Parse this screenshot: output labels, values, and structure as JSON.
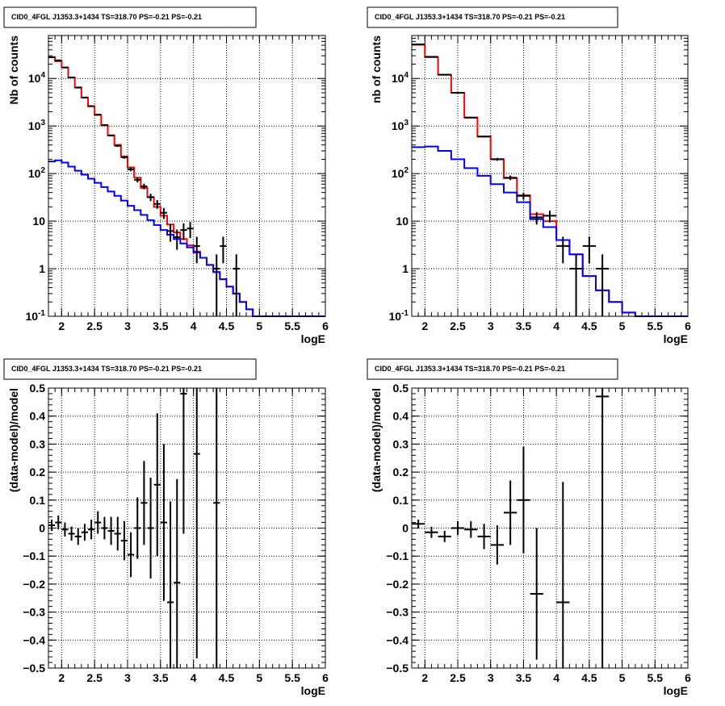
{
  "chart_data": [
    {
      "type": "line",
      "title": "CID0_4FGL J1353.3+1434 TS=318.70 PS=-0.21 PS=-0.21",
      "xlabel": "logE",
      "ylabel": "Nb of counts",
      "xlim": [
        1.8,
        6.0
      ],
      "ylim": [
        0.1,
        80000
      ],
      "yscale": "log",
      "grid": true,
      "x_ticks": [
        2,
        2.5,
        3,
        3.5,
        4,
        4.5,
        5,
        5.5,
        6
      ],
      "x_tick_labels": [
        "2",
        "2.5",
        "3",
        "3.5",
        "4",
        "4.5",
        "5",
        "5.5",
        "6"
      ],
      "y_ticks": [
        0.1,
        1,
        10,
        100,
        1000,
        10000
      ],
      "y_tick_labels": [
        "10^-1",
        "1",
        "10",
        "10^2",
        "10^3",
        "10^4"
      ],
      "bin_edges": [
        1.8,
        1.9,
        2.0,
        2.1,
        2.2,
        2.3,
        2.4,
        2.5,
        2.6,
        2.7,
        2.8,
        2.9,
        3.0,
        3.1,
        3.2,
        3.3,
        3.4,
        3.5,
        3.6,
        3.7,
        3.8,
        3.9,
        4.0,
        4.1,
        4.2,
        4.3,
        4.4,
        4.5,
        4.6,
        4.7,
        4.8,
        4.9,
        5.0,
        5.1,
        5.2,
        5.3,
        5.4,
        5.5,
        5.6,
        5.7,
        5.8,
        5.9,
        6.0
      ],
      "series": [
        {
          "color": "#ff0000",
          "kind": "step",
          "values": [
            28000,
            23000,
            17000,
            10500,
            6500,
            4000,
            2600,
            1700,
            1050,
            640,
            400,
            230,
            135,
            82,
            50,
            32,
            20,
            13,
            8.5,
            5.8,
            4.2,
            3.1,
            2.3,
            1.7,
            1.2,
            0.85,
            0.6,
            0.42,
            0.3,
            0.2,
            0.14,
            0.1,
            0.1,
            0.1,
            0.1,
            0.1,
            0.1,
            0.1,
            0.1,
            0.1,
            0.1,
            0.1
          ]
        },
        {
          "color": "#0000ff",
          "kind": "step",
          "values": [
            180,
            190,
            170,
            140,
            115,
            95,
            78,
            64,
            52,
            42,
            34,
            27,
            21,
            17,
            13.5,
            10.5,
            8.3,
            6.5,
            5.2,
            4.2,
            3.4,
            2.8,
            2.2,
            1.7,
            1.2,
            0.85,
            0.6,
            0.42,
            0.3,
            0.2,
            0.14,
            0.1,
            0.1,
            0.1,
            0.1,
            0.1,
            0.1,
            0.1,
            0.1,
            0.1,
            0.1,
            0.1
          ]
        },
        {
          "color": "#000000",
          "kind": "errorbar",
          "points": [
            {
              "x": 1.85,
              "y": 28000,
              "yerr": 170
            },
            {
              "x": 1.95,
              "y": 24000,
              "yerr": 155
            },
            {
              "x": 2.05,
              "y": 17000,
              "yerr": 130
            },
            {
              "x": 2.15,
              "y": 10500,
              "yerr": 102
            },
            {
              "x": 2.25,
              "y": 6400,
              "yerr": 80
            },
            {
              "x": 2.35,
              "y": 3950,
              "yerr": 63
            },
            {
              "x": 2.45,
              "y": 2620,
              "yerr": 51
            },
            {
              "x": 2.55,
              "y": 1740,
              "yerr": 42
            },
            {
              "x": 2.65,
              "y": 1040,
              "yerr": 32
            },
            {
              "x": 2.75,
              "y": 630,
              "yerr": 25
            },
            {
              "x": 2.85,
              "y": 385,
              "yerr": 20
            },
            {
              "x": 2.95,
              "y": 220,
              "yerr": 15
            },
            {
              "x": 3.05,
              "y": 123,
              "yerr": 11
            },
            {
              "x": 3.15,
              "y": 74,
              "yerr": 8.6
            },
            {
              "x": 3.25,
              "y": 54,
              "yerr": 7.3
            },
            {
              "x": 3.35,
              "y": 32,
              "yerr": 5.7
            },
            {
              "x": 3.45,
              "y": 23,
              "yerr": 4.8
            },
            {
              "x": 3.55,
              "y": 15,
              "yerr": 3.9
            },
            {
              "x": 3.65,
              "y": 6.2,
              "yerr": 2.5
            },
            {
              "x": 3.75,
              "y": 4.6,
              "yerr": 2.1
            },
            {
              "x": 3.85,
              "y": 6.5,
              "yerr": 2.5
            },
            {
              "x": 3.95,
              "y": 7,
              "yerr": 2.6
            },
            {
              "x": 4.05,
              "y": 3,
              "yerr": 1.7
            },
            {
              "x": 4.35,
              "y": 1,
              "yerr": 1
            },
            {
              "x": 4.45,
              "y": 3,
              "yerr": 1.7
            },
            {
              "x": 4.65,
              "y": 1,
              "yerr": 1
            }
          ]
        }
      ]
    },
    {
      "type": "line",
      "title": "CID0_4FGL J1353.3+1434 TS=318.70 PS=-0.21 PS=-0.21",
      "xlabel": "logE",
      "ylabel": "nb of counts",
      "xlim": [
        1.8,
        6.0
      ],
      "ylim": [
        0.1,
        80000
      ],
      "yscale": "log",
      "grid": true,
      "x_ticks": [
        2,
        2.5,
        3,
        3.5,
        4,
        4.5,
        5,
        5.5,
        6
      ],
      "x_tick_labels": [
        "2",
        "2.5",
        "3",
        "3.5",
        "4",
        "4.5",
        "5",
        "5.5",
        "6"
      ],
      "y_ticks": [
        0.1,
        1,
        10,
        100,
        1000,
        10000
      ],
      "y_tick_labels": [
        "10^-1",
        "1",
        "10",
        "10^2",
        "10^3",
        "10^4"
      ],
      "bin_edges": [
        1.8,
        2.0,
        2.2,
        2.4,
        2.6,
        2.8,
        3.0,
        3.2,
        3.4,
        3.6,
        3.8,
        4.0,
        4.2,
        4.4,
        4.6,
        4.8,
        5.0,
        5.2,
        5.4,
        5.6,
        5.8,
        6.0
      ],
      "series": [
        {
          "color": "#ff0000",
          "kind": "step",
          "values": [
            51000,
            28000,
            12000,
            5000,
            1500,
            600,
            200,
            80,
            35,
            14,
            10,
            4,
            2,
            0.7,
            0.35,
            0.2,
            0.12,
            0.1,
            0.1,
            0.1,
            0.1
          ]
        },
        {
          "color": "#0000ff",
          "kind": "step",
          "values": [
            360,
            370,
            300,
            200,
            130,
            90,
            60,
            40,
            25,
            11,
            7.5,
            4,
            2,
            0.7,
            0.35,
            0.2,
            0.12,
            0.1,
            0.1,
            0.1,
            0.1
          ]
        },
        {
          "color": "#000000",
          "kind": "errorbar",
          "points": [
            {
              "x": 1.9,
              "y": 52000,
              "yerr": 228
            },
            {
              "x": 2.1,
              "y": 28500,
              "yerr": 169
            },
            {
              "x": 2.3,
              "y": 12000,
              "yerr": 110
            },
            {
              "x": 2.5,
              "y": 5000,
              "yerr": 71
            },
            {
              "x": 2.7,
              "y": 1500,
              "yerr": 39
            },
            {
              "x": 2.9,
              "y": 600,
              "yerr": 24
            },
            {
              "x": 3.1,
              "y": 200,
              "yerr": 14
            },
            {
              "x": 3.3,
              "y": 82,
              "yerr": 9
            },
            {
              "x": 3.5,
              "y": 34,
              "yerr": 5.8
            },
            {
              "x": 3.7,
              "y": 12,
              "yerr": 3.5
            },
            {
              "x": 3.9,
              "y": 13,
              "yerr": 3.6
            },
            {
              "x": 4.1,
              "y": 3,
              "yerr": 1.7
            },
            {
              "x": 4.3,
              "y": 1,
              "yerr": 1
            },
            {
              "x": 4.5,
              "y": 3,
              "yerr": 1.7
            },
            {
              "x": 4.7,
              "y": 1,
              "yerr": 1
            }
          ]
        }
      ]
    },
    {
      "type": "scatter",
      "title": "CID0_4FGL J1353.3+1434 TS=318.70 PS=-0.21 PS=-0.21",
      "xlabel": "logE",
      "ylabel": "(data-model)/model",
      "xlim": [
        1.8,
        6.0
      ],
      "ylim": [
        -0.5,
        0.5
      ],
      "yscale": "linear",
      "grid": true,
      "x_ticks": [
        2,
        2.5,
        3,
        3.5,
        4,
        4.5,
        5,
        5.5,
        6
      ],
      "x_tick_labels": [
        "2",
        "2.5",
        "3",
        "3.5",
        "4",
        "4.5",
        "5",
        "5.5",
        "6"
      ],
      "y_ticks": [
        -0.5,
        -0.4,
        -0.3,
        -0.2,
        -0.1,
        0,
        0.1,
        0.2,
        0.3,
        0.4,
        0.5
      ],
      "y_tick_labels": [
        "−0.5",
        "−0.4",
        "−0.3",
        "−0.2",
        "−0.1",
        "0",
        "0.1",
        "0.2",
        "0.3",
        "0.4",
        "0.5"
      ],
      "xerr": 0.05,
      "series": [
        {
          "color": "#000000",
          "kind": "errorbar",
          "points": [
            {
              "x": 1.85,
              "y": 0.01,
              "yerr": 0.02
            },
            {
              "x": 1.95,
              "y": 0.02,
              "yerr": 0.025
            },
            {
              "x": 2.05,
              "y": -0.005,
              "yerr": 0.025
            },
            {
              "x": 2.15,
              "y": -0.02,
              "yerr": 0.025
            },
            {
              "x": 2.25,
              "y": -0.03,
              "yerr": 0.03
            },
            {
              "x": 2.35,
              "y": -0.015,
              "yerr": 0.03
            },
            {
              "x": 2.45,
              "y": -0.005,
              "yerr": 0.035
            },
            {
              "x": 2.55,
              "y": 0.02,
              "yerr": 0.04
            },
            {
              "x": 2.65,
              "y": 0.0,
              "yerr": 0.04
            },
            {
              "x": 2.75,
              "y": -0.01,
              "yerr": 0.05
            },
            {
              "x": 2.85,
              "y": -0.02,
              "yerr": 0.06
            },
            {
              "x": 2.95,
              "y": -0.045,
              "yerr": 0.07
            },
            {
              "x": 3.05,
              "y": -0.095,
              "yerr": 0.08
            },
            {
              "x": 3.15,
              "y": 0.0,
              "yerr": 0.11
            },
            {
              "x": 3.25,
              "y": 0.09,
              "yerr": 0.15
            },
            {
              "x": 3.35,
              "y": 0.0,
              "yerr": 0.18
            },
            {
              "x": 3.45,
              "y": 0.155,
              "yerr": 0.255
            },
            {
              "x": 3.55,
              "y": 0.02,
              "yerr": 0.28
            },
            {
              "x": 3.65,
              "y": -0.265,
              "yerr": 0.36
            },
            {
              "x": 3.75,
              "y": -0.195,
              "yerr": 0.37
            },
            {
              "x": 3.85,
              "y": 0.48,
              "yerr": 0.5
            },
            {
              "x": 4.05,
              "y": 0.265,
              "yerr": 0.73
            },
            {
              "x": 4.35,
              "y": 0.09,
              "yerr": 1.0
            }
          ]
        }
      ]
    },
    {
      "type": "scatter",
      "title": "CID0_4FGL J1353.3+1434 TS=318.70 PS=-0.21 PS=-0.21",
      "xlabel": "logE",
      "ylabel": "(data-model)/model",
      "xlim": [
        1.8,
        6.0
      ],
      "ylim": [
        -0.5,
        0.5
      ],
      "yscale": "linear",
      "grid": true,
      "x_ticks": [
        2,
        2.5,
        3,
        3.5,
        4,
        4.5,
        5,
        5.5,
        6
      ],
      "x_tick_labels": [
        "2",
        "2.5",
        "3",
        "3.5",
        "4",
        "4.5",
        "5",
        "5.5",
        "6"
      ],
      "y_ticks": [
        -0.5,
        -0.4,
        -0.3,
        -0.2,
        -0.1,
        0,
        0.1,
        0.2,
        0.3,
        0.4,
        0.5
      ],
      "y_tick_labels": [
        "−0.5",
        "−0.4",
        "−0.3",
        "−0.2",
        "−0.1",
        "0",
        "0.1",
        "0.2",
        "0.3",
        "0.4",
        "0.5"
      ],
      "xerr": 0.1,
      "series": [
        {
          "color": "#000000",
          "kind": "errorbar",
          "points": [
            {
              "x": 1.9,
              "y": 0.015,
              "yerr": 0.015
            },
            {
              "x": 2.1,
              "y": -0.015,
              "yerr": 0.02
            },
            {
              "x": 2.3,
              "y": -0.03,
              "yerr": 0.02
            },
            {
              "x": 2.5,
              "y": 0.0,
              "yerr": 0.025
            },
            {
              "x": 2.7,
              "y": -0.005,
              "yerr": 0.03
            },
            {
              "x": 2.9,
              "y": -0.03,
              "yerr": 0.045
            },
            {
              "x": 3.1,
              "y": -0.06,
              "yerr": 0.07
            },
            {
              "x": 3.3,
              "y": 0.055,
              "yerr": 0.115
            },
            {
              "x": 3.5,
              "y": 0.1,
              "yerr": 0.19
            },
            {
              "x": 3.7,
              "y": -0.235,
              "yerr": 0.235
            },
            {
              "x": 4.1,
              "y": -0.265,
              "yerr": 0.43
            },
            {
              "x": 4.7,
              "y": 0.47,
              "yerr": 1.0
            }
          ]
        }
      ]
    }
  ]
}
